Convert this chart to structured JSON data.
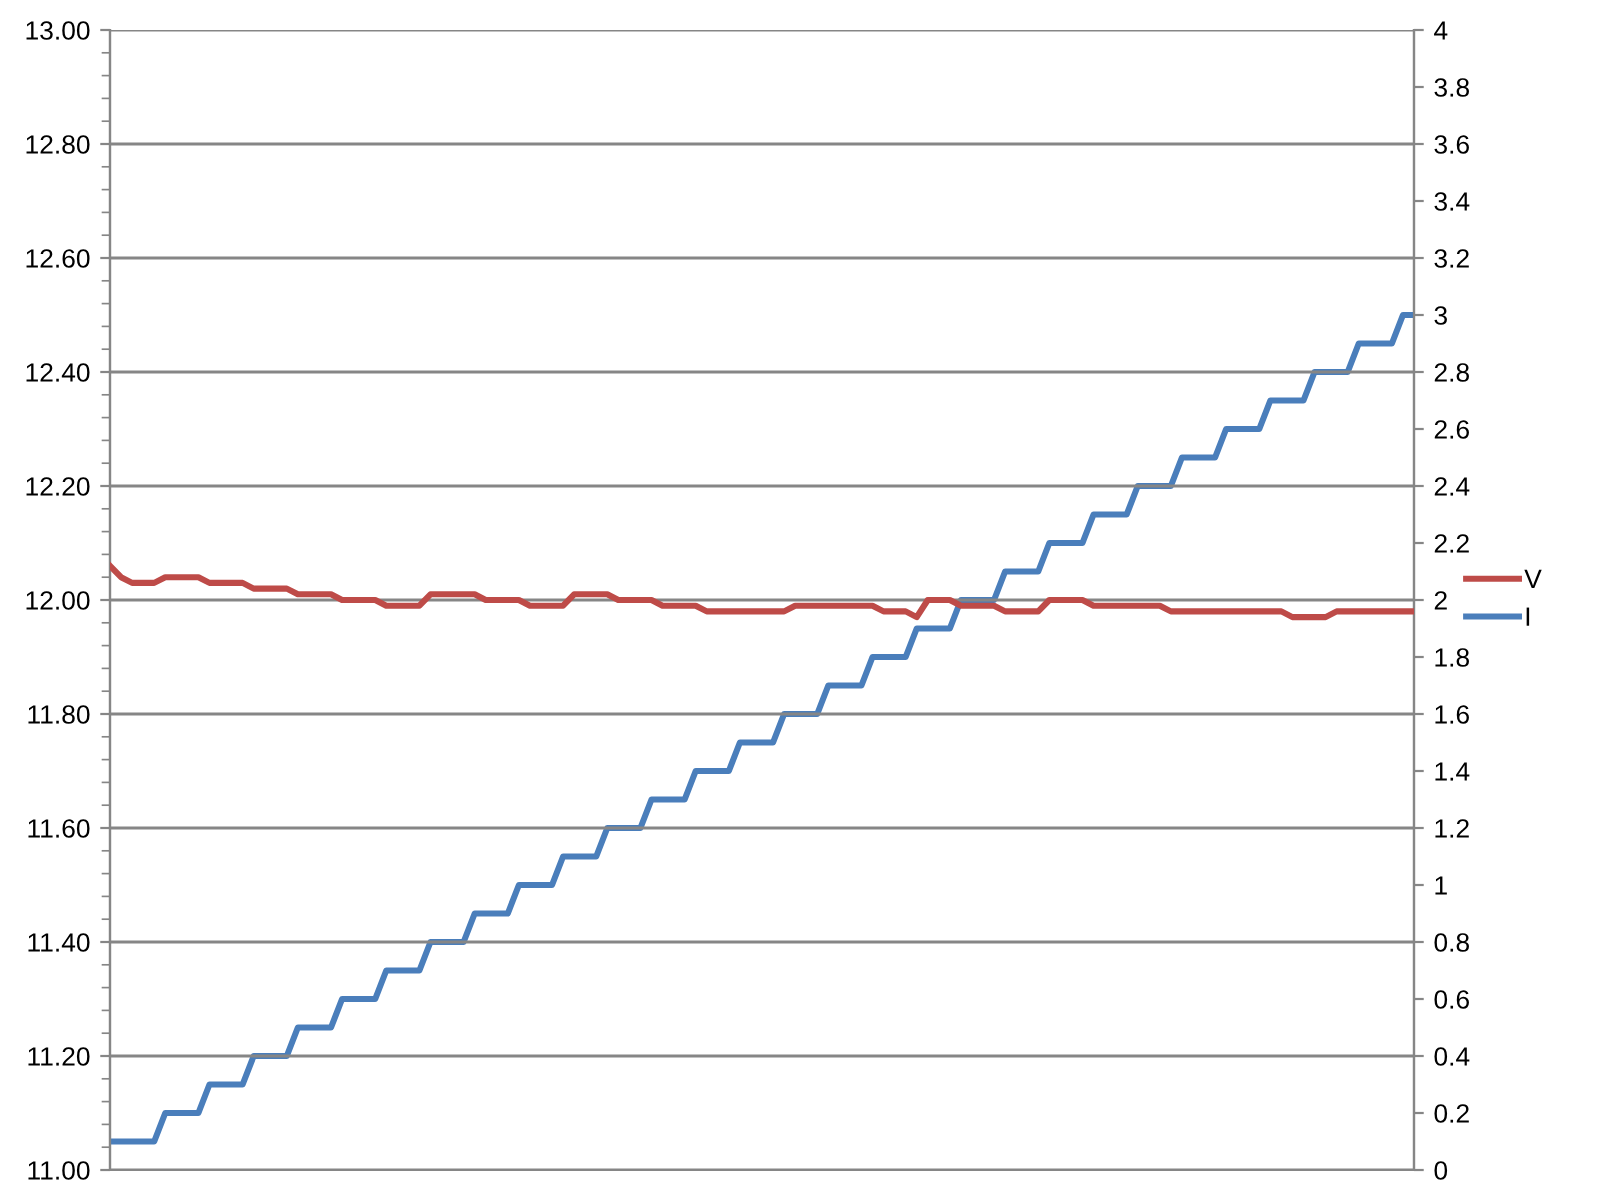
{
  "chart_data": {
    "type": "line",
    "categories": [
      null,
      null,
      null,
      null,
      null,
      null,
      null,
      null,
      null,
      null,
      null,
      null,
      null,
      null,
      null,
      null,
      null,
      null,
      null,
      null,
      null,
      null,
      null,
      null,
      null,
      null,
      null,
      null,
      null,
      null,
      null,
      null,
      null,
      null,
      null,
      null,
      null,
      null,
      null,
      null,
      null,
      null,
      null,
      null,
      null,
      null,
      null,
      null,
      null,
      null,
      null,
      null,
      null,
      null,
      null,
      null,
      null,
      null,
      null,
      null,
      null,
      null,
      null,
      null,
      null,
      null,
      null,
      null,
      null,
      null,
      null,
      null,
      null,
      null,
      null,
      null,
      null,
      null,
      null,
      null,
      null,
      null,
      null,
      null,
      null,
      null,
      null,
      null,
      null,
      null,
      null,
      null,
      null,
      null,
      null,
      null,
      null,
      null,
      null,
      null,
      null,
      null,
      null,
      null,
      null,
      null,
      null,
      null,
      null,
      null,
      null,
      null,
      null,
      null,
      null,
      null,
      null,
      null,
      null
    ],
    "series": [
      {
        "name": "V",
        "color": "#be4b48",
        "values": [
          12.06,
          12.04,
          12.03,
          12.03,
          12.03,
          12.04,
          12.04,
          12.04,
          12.04,
          12.03,
          12.03,
          12.03,
          12.03,
          12.02,
          12.02,
          12.02,
          12.02,
          12.01,
          12.01,
          12.01,
          12.01,
          12.0,
          12.0,
          12.0,
          12.0,
          11.99,
          11.99,
          11.99,
          11.99,
          12.01,
          12.01,
          12.01,
          12.01,
          12.01,
          12.0,
          12.0,
          12.0,
          12.0,
          11.99,
          11.99,
          11.99,
          11.99,
          12.01,
          12.01,
          12.01,
          12.01,
          12.0,
          12.0,
          12.0,
          12.0,
          11.99,
          11.99,
          11.99,
          11.99,
          11.98,
          11.98,
          11.98,
          11.98,
          11.98,
          11.98,
          11.98,
          11.98,
          11.99,
          11.99,
          11.99,
          11.99,
          11.99,
          11.99,
          11.99,
          11.99,
          11.98,
          11.98,
          11.98,
          11.97,
          12.0,
          12.0,
          12.0,
          11.99,
          11.99,
          11.99,
          11.99,
          11.98,
          11.98,
          11.98,
          11.98,
          12.0,
          12.0,
          12.0,
          12.0,
          11.99,
          11.99,
          11.99,
          11.99,
          11.99,
          11.99,
          11.99,
          11.98,
          11.98,
          11.98,
          11.98,
          11.98,
          11.98,
          11.98,
          11.98,
          11.98,
          11.98,
          11.98,
          11.97,
          11.97,
          11.97,
          11.97,
          11.98,
          11.98,
          11.98,
          11.98,
          11.98,
          11.98,
          11.98,
          11.98
        ]
      },
      {
        "name": "I",
        "color": "#4a7ebb",
        "axis": "y2",
        "values": [
          0.1,
          0.1,
          0.1,
          0.1,
          0.1,
          0.2,
          0.2,
          0.2,
          0.2,
          0.3,
          0.3,
          0.3,
          0.3,
          0.4,
          0.4,
          0.4,
          0.4,
          0.5,
          0.5,
          0.5,
          0.5,
          0.6,
          0.6,
          0.6,
          0.6,
          0.7,
          0.7,
          0.7,
          0.7,
          0.8,
          0.8,
          0.8,
          0.8,
          0.9,
          0.9,
          0.9,
          0.9,
          1.0,
          1.0,
          1.0,
          1.0,
          1.1,
          1.1,
          1.1,
          1.1,
          1.2,
          1.2,
          1.2,
          1.2,
          1.3,
          1.3,
          1.3,
          1.3,
          1.4,
          1.4,
          1.4,
          1.4,
          1.5,
          1.5,
          1.5,
          1.5,
          1.6,
          1.6,
          1.6,
          1.6,
          1.7,
          1.7,
          1.7,
          1.7,
          1.8,
          1.8,
          1.8,
          1.8,
          1.9,
          1.9,
          1.9,
          1.9,
          2.0,
          2.0,
          2.0,
          2.0,
          2.1,
          2.1,
          2.1,
          2.1,
          2.2,
          2.2,
          2.2,
          2.2,
          2.3,
          2.3,
          2.3,
          2.3,
          2.4,
          2.4,
          2.4,
          2.4,
          2.5,
          2.5,
          2.5,
          2.5,
          2.6,
          2.6,
          2.6,
          2.6,
          2.7,
          2.7,
          2.7,
          2.7,
          2.8,
          2.8,
          2.8,
          2.8,
          2.9,
          2.9,
          2.9,
          2.9,
          3.0,
          3.0
        ]
      }
    ],
    "ylim": [
      11,
      13
    ],
    "yticks": [
      {
        "value": 11,
        "label": "11.00"
      },
      {
        "value": 11.2,
        "label": "11.20"
      },
      {
        "value": 11.4,
        "label": "11.40"
      },
      {
        "value": 11.6,
        "label": "11.60"
      },
      {
        "value": 11.8,
        "label": "11.80"
      },
      {
        "value": 12,
        "label": "12.00"
      },
      {
        "value": 12.2,
        "label": "12.20"
      },
      {
        "value": 12.4,
        "label": "12.40"
      },
      {
        "value": 12.6,
        "label": "12.60"
      },
      {
        "value": 12.8,
        "label": "12.80"
      },
      {
        "value": 13,
        "label": "13.00"
      }
    ],
    "y2lim": [
      0,
      4
    ],
    "y2ticks": [
      0,
      0.2,
      0.4,
      0.6,
      0.8,
      1,
      1.2,
      1.4,
      1.6,
      1.8,
      2,
      2.2,
      2.4,
      2.6,
      2.8,
      3,
      3.2,
      3.4,
      3.6,
      3.8,
      4
    ],
    "grid": "y",
    "legend": "right",
    "marker": "none",
    "line_style": "solid"
  }
}
